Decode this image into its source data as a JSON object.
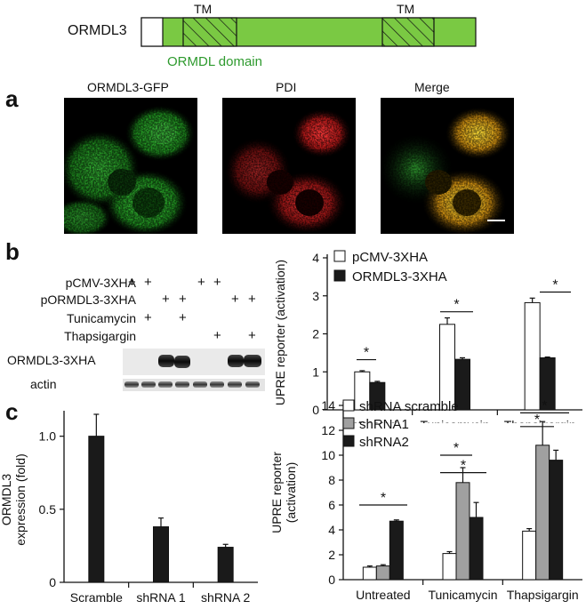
{
  "domain_diagram": {
    "protein_label": "ORMDL3",
    "tm_labels": [
      "TM",
      "TM"
    ],
    "domain_label": "ORMDL domain",
    "colors": {
      "domain": "#7ac943",
      "domain_text": "#2e9a2e"
    }
  },
  "panel_a": {
    "letter": "a",
    "image_titles": [
      "ORMDL3-GFP",
      "PDI",
      "Merge"
    ]
  },
  "panel_b": {
    "letter": "b",
    "blot_rows": [
      {
        "label": "pCMV-3XHA",
        "marks": [
          "+",
          "+",
          "",
          "",
          "+",
          "+",
          "",
          ""
        ]
      },
      {
        "label": "pORMDL3-3XHA",
        "marks": [
          "",
          "",
          "+",
          "+",
          "",
          "",
          "+",
          "+"
        ]
      },
      {
        "label": "Tunicamycin",
        "marks": [
          "",
          "+",
          "",
          "+",
          "",
          "",
          "",
          ""
        ]
      },
      {
        "label": "Thapsigargin",
        "marks": [
          "",
          "",
          "",
          "",
          "",
          "+",
          "",
          "+"
        ]
      }
    ],
    "blot_labels": [
      "ORMDL3-3XHA",
      "actin"
    ]
  },
  "panel_c": {
    "letter": "c"
  },
  "chart_data": [
    {
      "type": "bar",
      "panel": "b",
      "categories": [
        "Untreated",
        "Tunicamycin",
        "Thapsigargin"
      ],
      "series": [
        {
          "name": "pCMV-3XHA",
          "values": [
            1.0,
            2.25,
            2.82
          ],
          "errors": [
            0.03,
            0.17,
            0.12
          ],
          "color": "#ffffff"
        },
        {
          "name": "ORMDL3-3XHA",
          "values": [
            0.72,
            1.33,
            1.37
          ],
          "errors": [
            0.03,
            0.04,
            0.02
          ],
          "color": "#1a1a1a"
        }
      ],
      "ylabel": "UPRE reporter (activation)",
      "ylim": [
        0,
        4
      ],
      "yticks": [
        "0",
        "1",
        "2",
        "3",
        "4"
      ],
      "significance": [
        "*",
        "*",
        "*"
      ],
      "legend": "top-left"
    },
    {
      "type": "bar",
      "panel": "c-left",
      "categories": [
        "Scramble",
        "shRNA 1",
        "shRNA 2"
      ],
      "values": [
        1.0,
        0.38,
        0.24
      ],
      "errors": [
        0.15,
        0.06,
        0.02
      ],
      "ylabel": "ORMDL3 expression (fold)",
      "ylabel_lines": [
        "ORMDL3",
        "expression (fold)"
      ],
      "ylim": [
        0,
        1.15
      ],
      "yticks": [
        "0",
        "0.5",
        "1.0"
      ],
      "color": "#1a1a1a"
    },
    {
      "type": "bar",
      "panel": "c-right",
      "categories": [
        "Untreated",
        "Tunicamycin",
        "Thapsigargin"
      ],
      "series": [
        {
          "name": "shRNA scramble",
          "values": [
            1.0,
            2.1,
            3.9
          ],
          "errors": [
            0.1,
            0.15,
            0.2
          ],
          "color": "#ffffff"
        },
        {
          "name": "shRNA1",
          "values": [
            1.1,
            7.8,
            10.8
          ],
          "errors": [
            0.1,
            1.2,
            1.9
          ],
          "color": "#a0a0a0"
        },
        {
          "name": "shRNA2",
          "values": [
            4.7,
            5.0,
            9.6
          ],
          "errors": [
            0.1,
            1.2,
            0.8
          ],
          "color": "#1a1a1a"
        }
      ],
      "ylabel": "UPRE reporter (activation)",
      "ylabel_lines": [
        "UPRE reporter",
        "(activation)"
      ],
      "ylim": [
        0,
        14
      ],
      "yticks": [
        "0",
        "2",
        "4",
        "6",
        "8",
        "10",
        "12",
        "14"
      ],
      "significance": [
        "*",
        "*",
        "*",
        "*",
        "*"
      ],
      "legend": "top-left"
    }
  ]
}
